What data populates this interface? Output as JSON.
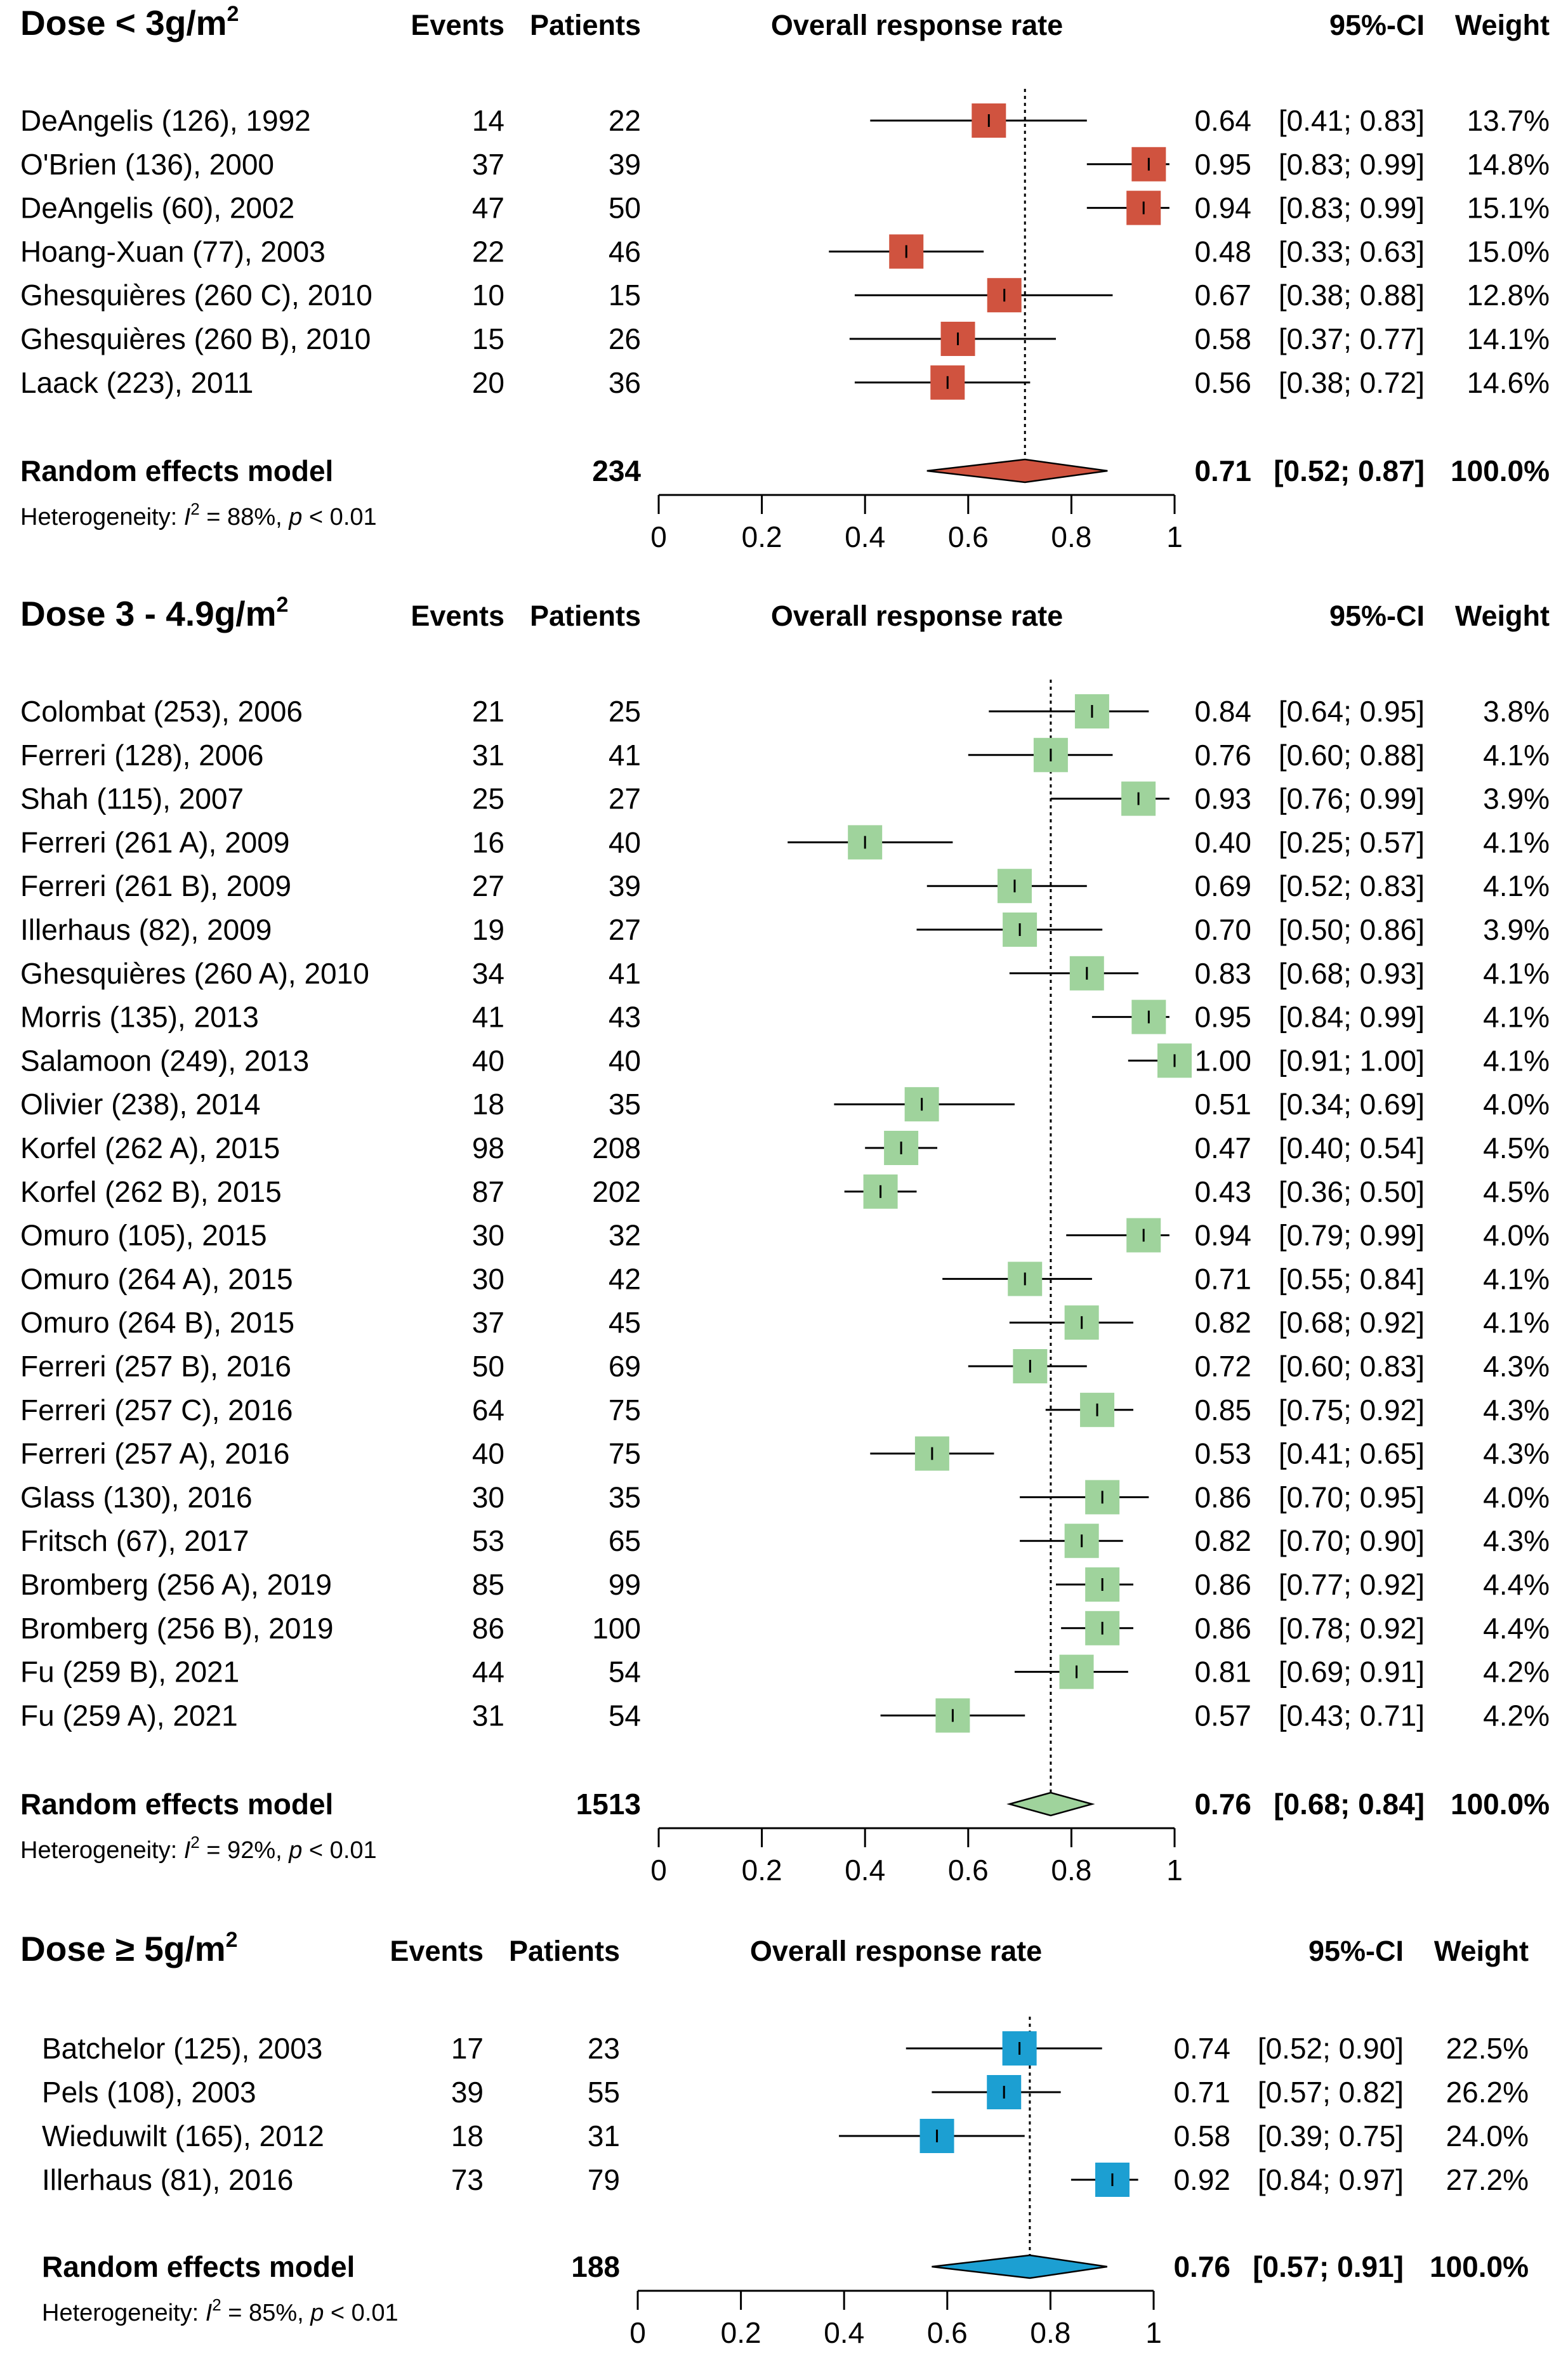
{
  "chart_data": [
    {
      "type": "forest",
      "title": "Dose < 3g/m²",
      "title_base": "Dose < 3g/m",
      "title_sup": "2",
      "headers": {
        "events": "Events",
        "patients": "Patients",
        "effect": "Overall response rate",
        "ci": "95%-CI",
        "weight": "Weight"
      },
      "color": "#d0533f",
      "studies": [
        {
          "label": "DeAngelis (126), 1992",
          "events": "14",
          "patients": "22",
          "est": "0.64",
          "ci": "[0.41; 0.83]",
          "weight": "13.7%",
          "value": 0.64,
          "lower": 0.41,
          "upper": 0.83
        },
        {
          "label": "O'Brien (136), 2000",
          "events": "37",
          "patients": "39",
          "est": "0.95",
          "ci": "[0.83; 0.99]",
          "weight": "14.8%",
          "value": 0.95,
          "lower": 0.83,
          "upper": 0.99
        },
        {
          "label": "DeAngelis (60), 2002",
          "events": "47",
          "patients": "50",
          "est": "0.94",
          "ci": "[0.83; 0.99]",
          "weight": "15.1%",
          "value": 0.94,
          "lower": 0.83,
          "upper": 0.99
        },
        {
          "label": "Hoang-Xuan (77), 2003",
          "events": "22",
          "patients": "46",
          "est": "0.48",
          "ci": "[0.33; 0.63]",
          "weight": "15.0%",
          "value": 0.48,
          "lower": 0.33,
          "upper": 0.63
        },
        {
          "label": "Ghesquières (260 C), 2010",
          "events": "10",
          "patients": "15",
          "est": "0.67",
          "ci": "[0.38; 0.88]",
          "weight": "12.8%",
          "value": 0.67,
          "lower": 0.38,
          "upper": 0.88
        },
        {
          "label": "Ghesquières (260 B), 2010",
          "events": "15",
          "patients": "26",
          "est": "0.58",
          "ci": "[0.37; 0.77]",
          "weight": "14.1%",
          "value": 0.58,
          "lower": 0.37,
          "upper": 0.77
        },
        {
          "label": "Laack (223), 2011",
          "events": "20",
          "patients": "36",
          "est": "0.56",
          "ci": "[0.38; 0.72]",
          "weight": "14.6%",
          "value": 0.56,
          "lower": 0.38,
          "upper": 0.72
        }
      ],
      "pooled": {
        "label": "Random effects model",
        "patients": "234",
        "est": "0.71",
        "ci": "[0.52; 0.87]",
        "weight": "100.0%",
        "value": 0.71,
        "lower": 0.52,
        "upper": 0.87
      },
      "heterogeneity": {
        "prefix": "Heterogeneity: ",
        "i": "I",
        "sup": "2",
        "mid": " = 88%, ",
        "p": "p",
        "suffix": " < 0.01"
      },
      "xlim": [
        0,
        1
      ],
      "ticks": [
        "0",
        "0.2",
        "0.4",
        "0.6",
        "0.8",
        "1"
      ]
    },
    {
      "type": "forest",
      "title": "Dose 3 - 4.9g/m²",
      "title_base": "Dose 3 - 4.9g/m",
      "title_sup": "2",
      "headers": {
        "events": "Events",
        "patients": "Patients",
        "effect": "Overall response rate",
        "ci": "95%-CI",
        "weight": "Weight"
      },
      "color": "#9fd39c",
      "studies": [
        {
          "label": "Colombat (253), 2006",
          "events": "21",
          "patients": "25",
          "est": "0.84",
          "ci": "[0.64; 0.95]",
          "weight": "3.8%",
          "value": 0.84,
          "lower": 0.64,
          "upper": 0.95
        },
        {
          "label": "Ferreri (128), 2006",
          "events": "31",
          "patients": "41",
          "est": "0.76",
          "ci": "[0.60; 0.88]",
          "weight": "4.1%",
          "value": 0.76,
          "lower": 0.6,
          "upper": 0.88
        },
        {
          "label": "Shah (115), 2007",
          "events": "25",
          "patients": "27",
          "est": "0.93",
          "ci": "[0.76; 0.99]",
          "weight": "3.9%",
          "value": 0.93,
          "lower": 0.76,
          "upper": 0.99
        },
        {
          "label": "Ferreri (261 A), 2009",
          "events": "16",
          "patients": "40",
          "est": "0.40",
          "ci": "[0.25; 0.57]",
          "weight": "4.1%",
          "value": 0.4,
          "lower": 0.25,
          "upper": 0.57
        },
        {
          "label": "Ferreri (261 B), 2009",
          "events": "27",
          "patients": "39",
          "est": "0.69",
          "ci": "[0.52; 0.83]",
          "weight": "4.1%",
          "value": 0.69,
          "lower": 0.52,
          "upper": 0.83
        },
        {
          "label": "Illerhaus (82), 2009",
          "events": "19",
          "patients": "27",
          "est": "0.70",
          "ci": "[0.50; 0.86]",
          "weight": "3.9%",
          "value": 0.7,
          "lower": 0.5,
          "upper": 0.86
        },
        {
          "label": "Ghesquières (260 A), 2010",
          "events": "34",
          "patients": "41",
          "est": "0.83",
          "ci": "[0.68; 0.93]",
          "weight": "4.1%",
          "value": 0.83,
          "lower": 0.68,
          "upper": 0.93
        },
        {
          "label": "Morris (135), 2013",
          "events": "41",
          "patients": "43",
          "est": "0.95",
          "ci": "[0.84; 0.99]",
          "weight": "4.1%",
          "value": 0.95,
          "lower": 0.84,
          "upper": 0.99
        },
        {
          "label": "Salamoon (249), 2013",
          "events": "40",
          "patients": "40",
          "est": "1.00",
          "ci": "[0.91; 1.00]",
          "weight": "4.1%",
          "value": 1.0,
          "lower": 0.91,
          "upper": 1.0
        },
        {
          "label": "Olivier (238), 2014",
          "events": "18",
          "patients": "35",
          "est": "0.51",
          "ci": "[0.34; 0.69]",
          "weight": "4.0%",
          "value": 0.51,
          "lower": 0.34,
          "upper": 0.69
        },
        {
          "label": "Korfel (262 A), 2015",
          "events": "98",
          "patients": "208",
          "est": "0.47",
          "ci": "[0.40; 0.54]",
          "weight": "4.5%",
          "value": 0.47,
          "lower": 0.4,
          "upper": 0.54
        },
        {
          "label": "Korfel (262 B), 2015",
          "events": "87",
          "patients": "202",
          "est": "0.43",
          "ci": "[0.36; 0.50]",
          "weight": "4.5%",
          "value": 0.43,
          "lower": 0.36,
          "upper": 0.5
        },
        {
          "label": "Omuro (105), 2015",
          "events": "30",
          "patients": "32",
          "est": "0.94",
          "ci": "[0.79; 0.99]",
          "weight": "4.0%",
          "value": 0.94,
          "lower": 0.79,
          "upper": 0.99
        },
        {
          "label": "Omuro (264 A), 2015",
          "events": "30",
          "patients": "42",
          "est": "0.71",
          "ci": "[0.55; 0.84]",
          "weight": "4.1%",
          "value": 0.71,
          "lower": 0.55,
          "upper": 0.84
        },
        {
          "label": "Omuro (264 B), 2015",
          "events": "37",
          "patients": "45",
          "est": "0.82",
          "ci": "[0.68; 0.92]",
          "weight": "4.1%",
          "value": 0.82,
          "lower": 0.68,
          "upper": 0.92
        },
        {
          "label": "Ferreri (257 B), 2016",
          "events": "50",
          "patients": "69",
          "est": "0.72",
          "ci": "[0.60; 0.83]",
          "weight": "4.3%",
          "value": 0.72,
          "lower": 0.6,
          "upper": 0.83
        },
        {
          "label": "Ferreri (257 C), 2016",
          "events": "64",
          "patients": "75",
          "est": "0.85",
          "ci": "[0.75; 0.92]",
          "weight": "4.3%",
          "value": 0.85,
          "lower": 0.75,
          "upper": 0.92
        },
        {
          "label": "Ferreri (257 A), 2016",
          "events": "40",
          "patients": "75",
          "est": "0.53",
          "ci": "[0.41; 0.65]",
          "weight": "4.3%",
          "value": 0.53,
          "lower": 0.41,
          "upper": 0.65
        },
        {
          "label": "Glass (130), 2016",
          "events": "30",
          "patients": "35",
          "est": "0.86",
          "ci": "[0.70; 0.95]",
          "weight": "4.0%",
          "value": 0.86,
          "lower": 0.7,
          "upper": 0.95
        },
        {
          "label": "Fritsch (67), 2017",
          "events": "53",
          "patients": "65",
          "est": "0.82",
          "ci": "[0.70; 0.90]",
          "weight": "4.3%",
          "value": 0.82,
          "lower": 0.7,
          "upper": 0.9
        },
        {
          "label": "Bromberg (256 A), 2019",
          "events": "85",
          "patients": "99",
          "est": "0.86",
          "ci": "[0.77; 0.92]",
          "weight": "4.4%",
          "value": 0.86,
          "lower": 0.77,
          "upper": 0.92
        },
        {
          "label": "Bromberg (256 B), 2019",
          "events": "86",
          "patients": "100",
          "est": "0.86",
          "ci": "[0.78; 0.92]",
          "weight": "4.4%",
          "value": 0.86,
          "lower": 0.78,
          "upper": 0.92
        },
        {
          "label": "Fu (259  B), 2021",
          "events": "44",
          "patients": "54",
          "est": "0.81",
          "ci": "[0.69; 0.91]",
          "weight": "4.2%",
          "value": 0.81,
          "lower": 0.69,
          "upper": 0.91
        },
        {
          "label": "Fu (259 A), 2021",
          "events": "31",
          "patients": "54",
          "est": "0.57",
          "ci": "[0.43; 0.71]",
          "weight": "4.2%",
          "value": 0.57,
          "lower": 0.43,
          "upper": 0.71
        }
      ],
      "pooled": {
        "label": "Random effects model",
        "patients": "1513",
        "est": "0.76",
        "ci": "[0.68; 0.84]",
        "weight": "100.0%",
        "value": 0.76,
        "lower": 0.68,
        "upper": 0.84
      },
      "heterogeneity": {
        "prefix": "Heterogeneity: ",
        "i": "I",
        "sup": "2",
        "mid": " = 92%, ",
        "p": "p",
        "suffix": " < 0.01"
      },
      "xlim": [
        0,
        1
      ],
      "ticks": [
        "0",
        "0.2",
        "0.4",
        "0.6",
        "0.8",
        "1"
      ]
    },
    {
      "type": "forest",
      "title": "Dose ≥ 5g/m²",
      "title_base": "Dose ≥ 5g/m",
      "title_sup": "2",
      "headers": {
        "events": "Events",
        "patients": "Patients",
        "effect": "Overall response rate",
        "ci": "95%-CI",
        "weight": "Weight"
      },
      "color": "#1c9fd2",
      "studies": [
        {
          "label": "Batchelor (125), 2003",
          "events": "17",
          "patients": "23",
          "est": "0.74",
          "ci": "[0.52; 0.90]",
          "weight": "22.5%",
          "value": 0.74,
          "lower": 0.52,
          "upper": 0.9
        },
        {
          "label": "Pels (108), 2003",
          "events": "39",
          "patients": "55",
          "est": "0.71",
          "ci": "[0.57; 0.82]",
          "weight": "26.2%",
          "value": 0.71,
          "lower": 0.57,
          "upper": 0.82
        },
        {
          "label": "Wieduwilt (165), 2012",
          "events": "18",
          "patients": "31",
          "est": "0.58",
          "ci": "[0.39; 0.75]",
          "weight": "24.0%",
          "value": 0.58,
          "lower": 0.39,
          "upper": 0.75
        },
        {
          "label": "Illerhaus (81), 2016",
          "events": "73",
          "patients": "79",
          "est": "0.92",
          "ci": "[0.84; 0.97]",
          "weight": "27.2%",
          "value": 0.92,
          "lower": 0.84,
          "upper": 0.97
        }
      ],
      "pooled": {
        "label": "Random effects model",
        "patients": "188",
        "est": "0.76",
        "ci": "[0.57; 0.91]",
        "weight": "100.0%",
        "value": 0.76,
        "lower": 0.57,
        "upper": 0.91
      },
      "heterogeneity": {
        "prefix": "Heterogeneity: ",
        "i": "I",
        "sup": "2",
        "mid": " = 85%, ",
        "p": "p",
        "suffix": " < 0.01"
      },
      "xlim": [
        0,
        1
      ],
      "ticks": [
        "0",
        "0.2",
        "0.4",
        "0.6",
        "0.8",
        "1"
      ]
    }
  ]
}
